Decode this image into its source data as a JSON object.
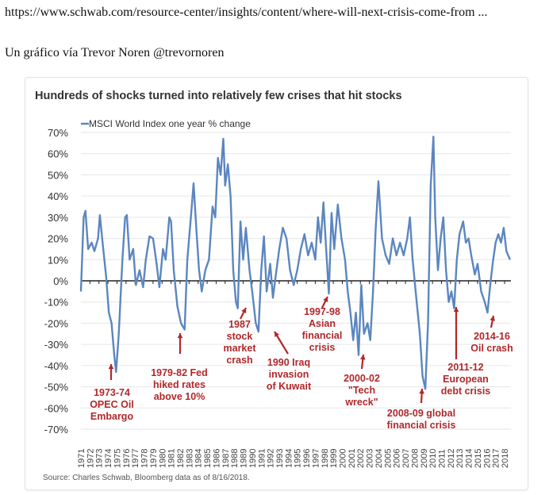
{
  "post": {
    "link_text": "https://www.schwab.com/resource-center/insights/content/where-will-next-crisis-come-from ...",
    "credit": "Un gráfico vía Trevor Noren @trevornoren"
  },
  "chart_data": {
    "type": "line",
    "title": "Hundreds of shocks turned into relatively few crises that hit stocks",
    "legend": "MSCI World Index one year % change",
    "legend_position": "top-left",
    "xlabel": "",
    "ylabel": "",
    "ylim": [
      -70,
      70
    ],
    "yticks": [
      "70%",
      "60%",
      "50%",
      "40%",
      "30%",
      "20%",
      "10%",
      "0%",
      "-10%",
      "-20%",
      "-30%",
      "-40%",
      "-50%",
      "-60%",
      "-70%"
    ],
    "ytick_values": [
      70,
      60,
      50,
      40,
      30,
      20,
      10,
      0,
      -10,
      -20,
      -30,
      -40,
      -50,
      -60,
      -70
    ],
    "xticks": [
      "1971",
      "1972",
      "1973",
      "1974",
      "1975",
      "1976",
      "1977",
      "1978",
      "1979",
      "1980",
      "1981",
      "1982",
      "1983",
      "1984",
      "1985",
      "1986",
      "1987",
      "1988",
      "1989",
      "1990",
      "1991",
      "1992",
      "1993",
      "1994",
      "1995",
      "1996",
      "1997",
      "1998",
      "1999",
      "2000",
      "2001",
      "2002",
      "2003",
      "2004",
      "2005",
      "2006",
      "2007",
      "2008",
      "2009",
      "2010",
      "2011",
      "2012",
      "2013",
      "2014",
      "2015",
      "2016",
      "2017",
      "2018"
    ],
    "xlim": [
      1971,
      2018.7
    ],
    "grid": true,
    "line_color": "#5b86c0",
    "annotation_color": "#b0282b",
    "series": [
      {
        "name": "MSCI World Index one year % change",
        "x": [
          1971.0,
          1971.3,
          1971.5,
          1971.8,
          1972.2,
          1972.5,
          1972.9,
          1973.1,
          1973.4,
          1973.8,
          1974.1,
          1974.4,
          1974.7,
          1974.9,
          1975.2,
          1975.6,
          1975.9,
          1976.1,
          1976.4,
          1976.8,
          1977.1,
          1977.5,
          1977.9,
          1978.2,
          1978.6,
          1979.0,
          1979.4,
          1979.7,
          1980.1,
          1980.4,
          1980.8,
          1981.0,
          1981.3,
          1981.7,
          1982.1,
          1982.5,
          1982.8,
          1983.2,
          1983.5,
          1983.8,
          1984.1,
          1984.4,
          1984.8,
          1985.2,
          1985.6,
          1985.9,
          1986.2,
          1986.5,
          1986.8,
          1987.0,
          1987.3,
          1987.6,
          1987.9,
          1988.2,
          1988.4,
          1988.7,
          1989.0,
          1989.3,
          1989.7,
          1990.0,
          1990.4,
          1990.7,
          1991.0,
          1991.3,
          1991.6,
          1992.0,
          1992.3,
          1992.6,
          1993.0,
          1993.4,
          1993.8,
          1994.2,
          1994.6,
          1995.0,
          1995.4,
          1995.8,
          1996.2,
          1996.6,
          1997.0,
          1997.3,
          1997.6,
          1997.9,
          1998.2,
          1998.5,
          1998.8,
          1999.1,
          1999.5,
          1999.9,
          2000.3,
          2000.6,
          2000.9,
          2001.2,
          2001.5,
          2001.8,
          2002.1,
          2002.4,
          2002.8,
          2003.1,
          2003.4,
          2003.7,
          2004.0,
          2004.4,
          2004.8,
          2005.2,
          2005.6,
          2006.0,
          2006.4,
          2006.8,
          2007.2,
          2007.5,
          2007.8,
          2008.2,
          2008.6,
          2008.9,
          2009.2,
          2009.5,
          2009.8,
          2010.1,
          2010.3,
          2010.6,
          2010.9,
          2011.2,
          2011.5,
          2011.8,
          2012.1,
          2012.4,
          2012.7,
          2013.0,
          2013.4,
          2013.7,
          2014.0,
          2014.3,
          2014.7,
          2015.0,
          2015.4,
          2015.8,
          2016.1,
          2016.4,
          2016.7,
          2017.0,
          2017.3,
          2017.6,
          2017.9,
          2018.2,
          2018.6
        ],
        "y": [
          -5,
          30,
          33,
          15,
          18,
          14,
          20,
          31,
          18,
          2,
          -15,
          -20,
          -35,
          -43,
          -25,
          10,
          30,
          31,
          10,
          15,
          -2,
          5,
          -3,
          10,
          21,
          20,
          8,
          -3,
          15,
          10,
          30,
          28,
          5,
          -12,
          -20,
          -23,
          10,
          30,
          46,
          25,
          5,
          -5,
          5,
          10,
          35,
          30,
          58,
          50,
          67,
          45,
          55,
          40,
          5,
          -10,
          -13,
          28,
          10,
          25,
          5,
          -5,
          -20,
          -24,
          5,
          21,
          -5,
          8,
          -8,
          2,
          15,
          25,
          20,
          5,
          -2,
          5,
          15,
          22,
          12,
          18,
          10,
          30,
          18,
          37,
          15,
          -6,
          32,
          15,
          36,
          20,
          10,
          -5,
          -15,
          -28,
          -15,
          -35,
          -2,
          -25,
          -20,
          -28,
          -5,
          25,
          47,
          20,
          12,
          8,
          20,
          12,
          18,
          12,
          20,
          30,
          10,
          -8,
          -25,
          -45,
          -51,
          -20,
          45,
          68,
          30,
          5,
          20,
          30,
          5,
          -10,
          -5,
          -13,
          10,
          22,
          28,
          18,
          20,
          12,
          3,
          8,
          -5,
          -10,
          -15,
          -2,
          9,
          18,
          22,
          18,
          25,
          14,
          10
        ]
      }
    ],
    "annotations": [
      {
        "lines": [
          "1973-74",
          "OPEC Oil",
          "Embargo"
        ]
      },
      {
        "lines": [
          "1979-82 Fed",
          "hiked rates",
          "above 10%"
        ]
      },
      {
        "lines": [
          "1987",
          "stock",
          "market",
          "crash"
        ]
      },
      {
        "lines": [
          "1990 Iraq",
          "invasion",
          "of Kuwait"
        ]
      },
      {
        "lines": [
          "1997-98",
          "Asian",
          "financial",
          "crisis"
        ]
      },
      {
        "lines": [
          "2000-02",
          "\"Tech",
          "wreck\""
        ]
      },
      {
        "lines": [
          "2008-09 global",
          "financial crisis"
        ]
      },
      {
        "lines": [
          "2011-12",
          "European",
          "debt crisis"
        ]
      },
      {
        "lines": [
          "2014-16",
          "Oil crash"
        ]
      }
    ],
    "source": "Source: Charles Schwab, Bloomberg data as of 8/16/2018."
  }
}
